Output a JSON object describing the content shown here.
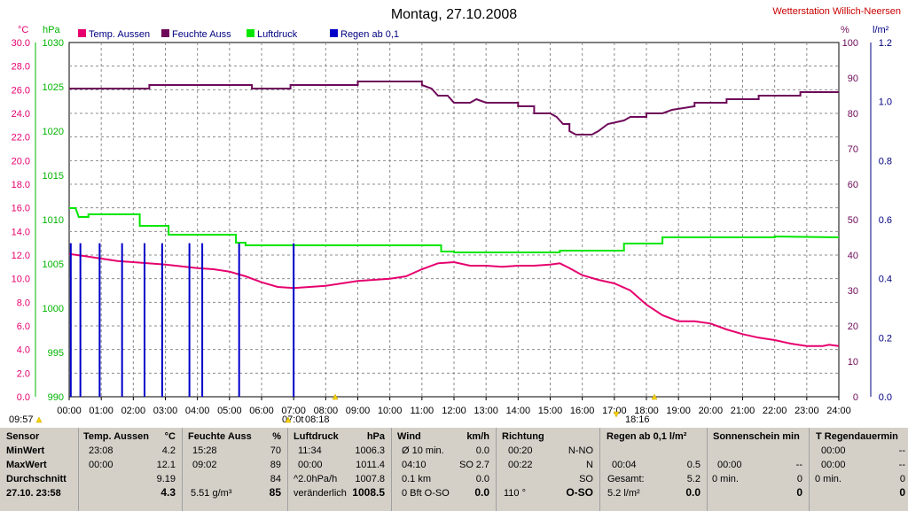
{
  "header": {
    "title": "Montag, 27.10.2008",
    "station": "Wetterstation Willich-Neersen",
    "unit_temp": "°C",
    "unit_pressure": "hPa",
    "unit_humidity": "%",
    "unit_rain": "l/m²"
  },
  "legend": [
    {
      "label": "Temp. Aussen",
      "color": "#e6006e"
    },
    {
      "label": "Feuchte Auss",
      "color": "#6e0a5a"
    },
    {
      "label": "Luftdruck",
      "color": "#00e600"
    },
    {
      "label": "Regen ab 0,1",
      "color": "#0000c8"
    }
  ],
  "colors": {
    "temp": "#e6006e",
    "humidity": "#6e0a5a",
    "pressure": "#00e600",
    "rain": "#0000c8",
    "grid": "#8c8c8c",
    "axis_temp": "#e6006e",
    "axis_pressure": "#00b400",
    "axis_hum": "#6e0a5a",
    "axis_rain": "#000080"
  },
  "chart_data": {
    "type": "line",
    "title": "Montag, 27.10.2008",
    "x_ticks": [
      "00:00",
      "01:00",
      "02:00",
      "03:00",
      "04:00",
      "05:00",
      "06:00",
      "07:00",
      "08:00",
      "09:00",
      "10:00",
      "11:00",
      "12:00",
      "13:00",
      "14:00",
      "15:00",
      "16:00",
      "17:00",
      "18:00",
      "19:00",
      "20:00",
      "21:00",
      "22:00",
      "23:00",
      "24:00"
    ],
    "x_range": [
      0,
      24
    ],
    "axes": {
      "temp": {
        "range": [
          0,
          30
        ],
        "ticks": [
          "0.0",
          "2.0",
          "4.0",
          "6.0",
          "8.0",
          "10.0",
          "12.0",
          "14.0",
          "16.0",
          "18.0",
          "20.0",
          "22.0",
          "24.0",
          "26.0",
          "28.0",
          "30.0"
        ]
      },
      "pressure": {
        "range": [
          990,
          1030
        ],
        "ticks": [
          "990",
          "995",
          "1000",
          "1005",
          "1010",
          "1015",
          "1020",
          "1025",
          "1030"
        ]
      },
      "humidity": {
        "range": [
          0,
          100
        ],
        "ticks": [
          "0",
          "10",
          "20",
          "30",
          "40",
          "50",
          "60",
          "70",
          "80",
          "90",
          "100"
        ]
      },
      "rain": {
        "range": [
          0,
          1.2
        ],
        "ticks": [
          "0.0",
          "0.2",
          "0.4",
          "0.6",
          "0.8",
          "1.0",
          "1.2"
        ]
      }
    },
    "series": [
      {
        "name": "Temp. Aussen",
        "axis": "temp",
        "points": [
          [
            0,
            12.1
          ],
          [
            0.5,
            11.9
          ],
          [
            1,
            11.7
          ],
          [
            1.5,
            11.5
          ],
          [
            2,
            11.4
          ],
          [
            3,
            11.2
          ],
          [
            4,
            10.9
          ],
          [
            4.5,
            10.8
          ],
          [
            5,
            10.6
          ],
          [
            5.5,
            10.2
          ],
          [
            6,
            9.7
          ],
          [
            6.5,
            9.3
          ],
          [
            7,
            9.2
          ],
          [
            7.5,
            9.3
          ],
          [
            8,
            9.4
          ],
          [
            8.5,
            9.6
          ],
          [
            9,
            9.8
          ],
          [
            9.5,
            9.9
          ],
          [
            10,
            10.0
          ],
          [
            10.5,
            10.2
          ],
          [
            11,
            10.8
          ],
          [
            11.5,
            11.3
          ],
          [
            12,
            11.4
          ],
          [
            12.5,
            11.1
          ],
          [
            13,
            11.1
          ],
          [
            13.5,
            11.0
          ],
          [
            14,
            11.1
          ],
          [
            14.5,
            11.1
          ],
          [
            15,
            11.2
          ],
          [
            15.3,
            11.3
          ],
          [
            15.6,
            10.9
          ],
          [
            16,
            10.3
          ],
          [
            16.5,
            9.9
          ],
          [
            17,
            9.6
          ],
          [
            17.5,
            9.0
          ],
          [
            18,
            7.8
          ],
          [
            18.5,
            6.9
          ],
          [
            19,
            6.4
          ],
          [
            19.5,
            6.4
          ],
          [
            20,
            6.2
          ],
          [
            20.5,
            5.7
          ],
          [
            21,
            5.3
          ],
          [
            21.5,
            5.0
          ],
          [
            22,
            4.8
          ],
          [
            22.5,
            4.5
          ],
          [
            23,
            4.3
          ],
          [
            23.5,
            4.3
          ],
          [
            23.7,
            4.4
          ],
          [
            24,
            4.3
          ]
        ]
      },
      {
        "name": "Feuchte Auss",
        "axis": "humidity",
        "points": [
          [
            0,
            87
          ],
          [
            2.5,
            87
          ],
          [
            2.5,
            88
          ],
          [
            5.7,
            88
          ],
          [
            5.7,
            87
          ],
          [
            6.9,
            87
          ],
          [
            6.9,
            88
          ],
          [
            9,
            88
          ],
          [
            9,
            89
          ],
          [
            11,
            89
          ],
          [
            11,
            88
          ],
          [
            11.3,
            87
          ],
          [
            11.5,
            85
          ],
          [
            11.8,
            85
          ],
          [
            12,
            83
          ],
          [
            12.5,
            83
          ],
          [
            12.7,
            84
          ],
          [
            13,
            83
          ],
          [
            14,
            83
          ],
          [
            14,
            82
          ],
          [
            14.5,
            82
          ],
          [
            14.5,
            80
          ],
          [
            15,
            80
          ],
          [
            15.2,
            79
          ],
          [
            15.4,
            77
          ],
          [
            15.6,
            77
          ],
          [
            15.6,
            75
          ],
          [
            15.8,
            74
          ],
          [
            16.3,
            74
          ],
          [
            16.5,
            75
          ],
          [
            16.8,
            77
          ],
          [
            17.3,
            78
          ],
          [
            17.5,
            79
          ],
          [
            18,
            79
          ],
          [
            18,
            80
          ],
          [
            18.5,
            80
          ],
          [
            18.8,
            81
          ],
          [
            19.5,
            82
          ],
          [
            19.5,
            83
          ],
          [
            20.5,
            83
          ],
          [
            20.5,
            84
          ],
          [
            21.5,
            84
          ],
          [
            21.5,
            85
          ],
          [
            22.8,
            85
          ],
          [
            22.8,
            86
          ],
          [
            24,
            86
          ]
        ]
      },
      {
        "name": "Luftdruck",
        "axis": "pressure",
        "points": [
          [
            0,
            1011.3
          ],
          [
            0.2,
            1011.3
          ],
          [
            0.3,
            1010.3
          ],
          [
            0.6,
            1010.3
          ],
          [
            0.6,
            1010.6
          ],
          [
            2.2,
            1010.6
          ],
          [
            2.2,
            1009.3
          ],
          [
            3.1,
            1009.3
          ],
          [
            3.1,
            1008.3
          ],
          [
            5.2,
            1008.3
          ],
          [
            5.2,
            1007.4
          ],
          [
            5.5,
            1007.4
          ],
          [
            5.5,
            1007.1
          ],
          [
            11.6,
            1007.1
          ],
          [
            11.6,
            1006.4
          ],
          [
            12,
            1006.4
          ],
          [
            12,
            1006.3
          ],
          [
            15.3,
            1006.3
          ],
          [
            15.3,
            1006.5
          ],
          [
            17.3,
            1006.5
          ],
          [
            17.3,
            1007.3
          ],
          [
            18.5,
            1007.3
          ],
          [
            18.5,
            1008.0
          ],
          [
            22,
            1008.0
          ],
          [
            22,
            1008.1
          ],
          [
            24,
            1008.0
          ]
        ]
      },
      {
        "name": "Regen ab 0,1",
        "axis": "rain",
        "type": "bar",
        "points": [
          [
            0.05,
            0.52
          ],
          [
            0.35,
            0.52
          ],
          [
            0.95,
            0.52
          ],
          [
            1.65,
            0.52
          ],
          [
            2.35,
            0.52
          ],
          [
            2.9,
            0.52
          ],
          [
            3.75,
            0.52
          ],
          [
            4.15,
            0.52
          ],
          [
            5.3,
            0.52
          ],
          [
            7.0,
            0.52
          ]
        ]
      }
    ],
    "markers": {
      "sunrise_time": "08:18",
      "sunset_time": "18:16",
      "start_time": "09:57",
      "cursor_time": "07:0t"
    }
  },
  "stats": {
    "sensor": {
      "header": "Sensor",
      "rows": [
        "MinWert",
        "MaxWert",
        "Durchschnitt",
        "27.10. 23:58"
      ]
    },
    "temp": {
      "header": "Temp. Aussen",
      "unit": "°C",
      "min_time": "23:08",
      "min": "4.2",
      "max_time": "00:00",
      "max": "12.1",
      "avg": "9.19",
      "current": "4.3"
    },
    "humidity": {
      "header": "Feuchte Auss",
      "unit": "%",
      "min_time": "15:28",
      "min": "70",
      "max_time": "09:02",
      "max": "89",
      "avg": "84",
      "abs": "5.51 g/m³",
      "current": "85"
    },
    "pressure": {
      "header": "Luftdruck",
      "unit": "hPa",
      "min_time": "11:34",
      "min": "1006.3",
      "max_time": "00:00",
      "max": "1011.4",
      "trend": "^2.0hPa/h",
      "trend_val": "1007.8",
      "tendency": "veränderlich",
      "current": "1008.5"
    },
    "wind": {
      "header": "Wind",
      "unit": "km/h",
      "r1_label": "Ø 10 min.",
      "r1_val": "0.0",
      "r2_label": "04:10",
      "r2_dir": "SO",
      "r2_val": "2.7",
      "r3_label": "0.1 km",
      "r3_val": "0.0",
      "r4_label": "0 Bft O-SO",
      "current": "0.0"
    },
    "direction": {
      "header": "Richtung",
      "r1_time": "00:20",
      "r1_val": "N-NO",
      "r2_time": "00:22",
      "r2_val": "N",
      "r3_val": "SO",
      "r4_deg": "110 °",
      "current": "O-SO"
    },
    "rain": {
      "header": "Regen ab 0,1  l/m²",
      "r2_time": "00:04",
      "r2_val": "0.5",
      "r3_label": "Gesamt:",
      "r3_val": "5.2",
      "r4_label": "5.2 l/m²",
      "current": "0.0"
    },
    "sunshine": {
      "header": "Sonnenschein min",
      "r2_time": "00:00",
      "r2_val": "--",
      "r3_label": "0 min.",
      "r3_val": "0",
      "current": "0"
    },
    "rainduration": {
      "header": "T Regendauermin",
      "r1_time": "00:00",
      "r1_val": "--",
      "r2_time": "00:00",
      "r2_val": "--",
      "r3_label": "0 min.",
      "r3_val": "0",
      "current": "0"
    }
  }
}
